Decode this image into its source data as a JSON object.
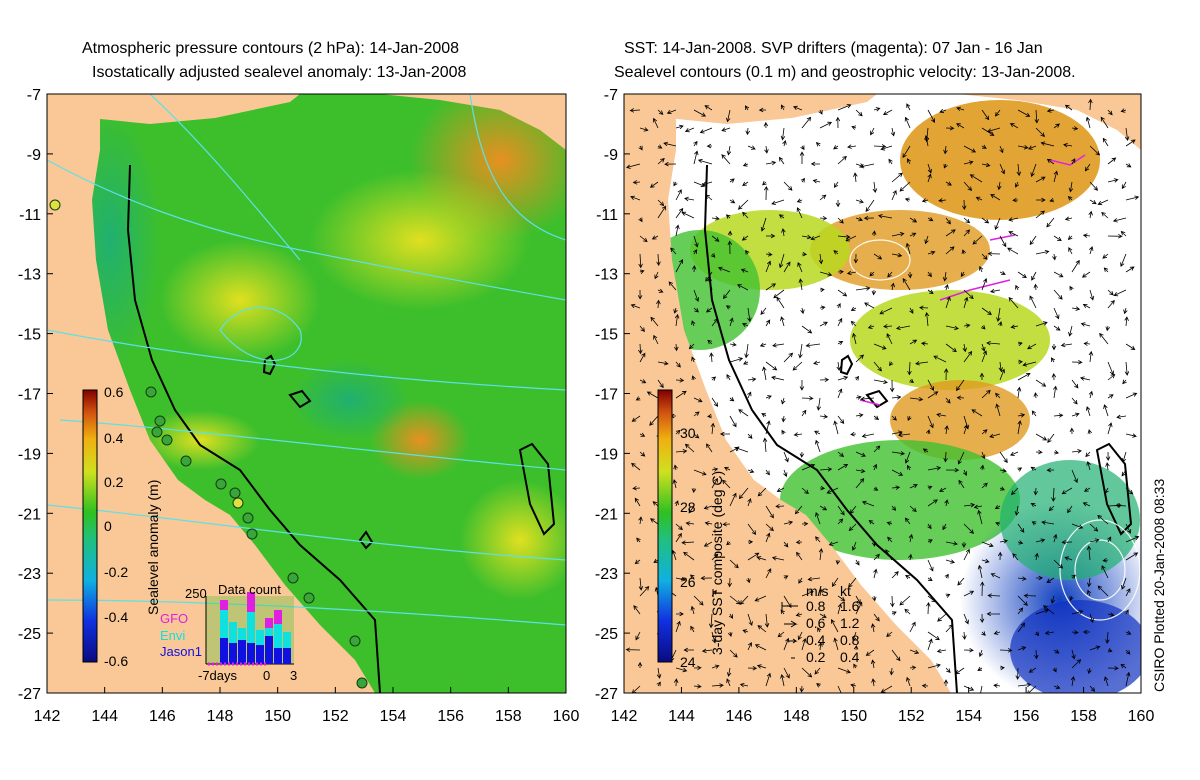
{
  "left_panel": {
    "title_line1": "Atmospheric pressure contours (2 hPa): 14-Jan-2008",
    "title_line2": "Isostatically adjusted sealevel anomaly: 13-Jan-2008",
    "colorbar_label": "Sealevel anomaly (m)",
    "colorbar_ticks": [
      "0.6",
      "0.4",
      "0.2",
      "0",
      "-0.2",
      "-0.4",
      "-0.6"
    ],
    "inset": {
      "max_label": "250",
      "title": "Data count",
      "legend": [
        "GFO",
        "Envi",
        "Jason1"
      ],
      "x_labels": [
        "-7days",
        "0",
        "3"
      ]
    }
  },
  "right_panel": {
    "title_line1": "SST: 14-Jan-2008. SVP drifters (magenta): 07 Jan - 16 Jan",
    "title_line2": "Sealevel contours (0.1 m) and geostrophic velocity: 13-Jan-2008.",
    "colorbar_label": "3-day SST composite (deg C)",
    "colorbar_ticks": [
      "30",
      "28",
      "26",
      "24"
    ],
    "velocity_legend": {
      "header_ms": "m/s",
      "header_kt": "kt",
      "rows": [
        {
          "ms": "0.8",
          "kt": "1.6"
        },
        {
          "ms": "0.6",
          "kt": "1.2"
        },
        {
          "ms": "0.4",
          "kt": "0.8"
        },
        {
          "ms": "0.2",
          "kt": "0.4"
        }
      ]
    },
    "credit": "CSIRO Plotted 20-Jan-2008 08:33"
  },
  "axes": {
    "x_ticks": [
      "142",
      "144",
      "146",
      "148",
      "150",
      "152",
      "154",
      "156",
      "158",
      "160"
    ],
    "y_ticks": [
      "-7",
      "-9",
      "-11",
      "-13",
      "-15",
      "-17",
      "-19",
      "-21",
      "-23",
      "-25",
      "-27"
    ]
  },
  "colors": {
    "land": "#f9c896",
    "ocean_mid": "#3dbf2c",
    "ocean_high": "#e8a020",
    "contour": "#5ee0e8",
    "sst_cold": "#1a3fb8",
    "drifter": "#e020e0"
  }
}
